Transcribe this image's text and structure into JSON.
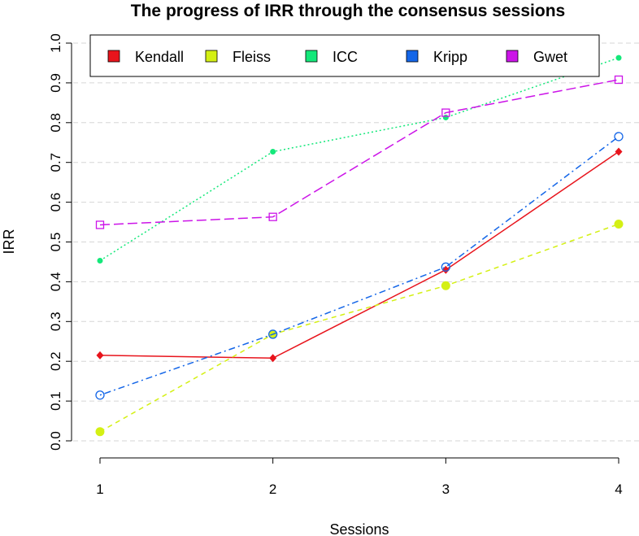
{
  "chart_data": {
    "type": "line",
    "title": "The progress of IRR  through the consensus sessions",
    "xlabel": "Sessions",
    "ylabel": "IRR",
    "x": [
      1,
      2,
      3,
      4
    ],
    "x_ticks": [
      "1",
      "2",
      "3",
      "4"
    ],
    "y_ticks": [
      "0.0",
      "0.1",
      "0.2",
      "0.3",
      "0.4",
      "0.5",
      "0.6",
      "0.7",
      "0.8",
      "0.9",
      "1.0"
    ],
    "ylim": [
      0,
      1
    ],
    "grid": "horizontal dashed",
    "legend_position": "top",
    "series": [
      {
        "name": "Kendall",
        "color": "#e8141c",
        "line": "solid",
        "marker": "diamond-filled",
        "values": [
          0.215,
          0.208,
          0.43,
          0.727
        ]
      },
      {
        "name": "Fleiss",
        "color": "#d4f014",
        "line": "dashed",
        "marker": "circle-filled",
        "values": [
          0.023,
          0.268,
          0.39,
          0.545
        ]
      },
      {
        "name": "ICC",
        "color": "#14e87a",
        "line": "dotted",
        "marker": "dot",
        "values": [
          0.453,
          0.727,
          0.813,
          0.963
        ]
      },
      {
        "name": "Kripp",
        "color": "#1466e8",
        "line": "dotdash",
        "marker": "circle-open",
        "values": [
          0.115,
          0.268,
          0.437,
          0.765
        ]
      },
      {
        "name": "Gwet",
        "color": "#cc14e8",
        "line": "longdash",
        "marker": "square-open",
        "values": [
          0.543,
          0.563,
          0.825,
          0.908
        ]
      }
    ]
  }
}
